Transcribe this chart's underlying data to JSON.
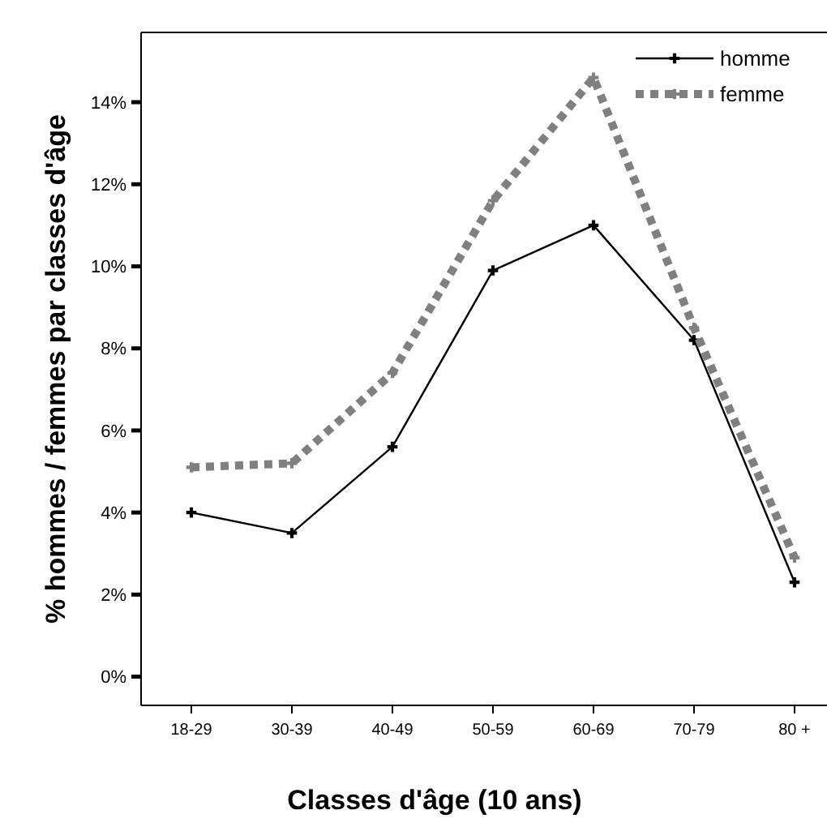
{
  "chart_data": {
    "type": "line",
    "xlabel": "Classes d'âge (10 ans)",
    "ylabel": "% hommes / femmes par classes d'âge",
    "categories": [
      "18-29",
      "30-39",
      "40-49",
      "50-59",
      "60-69",
      "70-79",
      "80 +"
    ],
    "series": [
      {
        "name": "homme",
        "color": "#000000",
        "values": [
          4.0,
          3.5,
          5.6,
          9.9,
          11.0,
          8.2,
          2.3
        ],
        "line_style": "solid"
      },
      {
        "name": "femme",
        "color": "#808080",
        "values": [
          5.1,
          5.2,
          7.4,
          11.6,
          14.6,
          8.5,
          2.9
        ],
        "line_style": "dotted"
      }
    ],
    "ylim": [
      -0.7,
      15.7
    ],
    "yticks": [
      {
        "value": 0,
        "label": "0%"
      },
      {
        "value": 2,
        "label": "2%"
      },
      {
        "value": 4,
        "label": "4%"
      },
      {
        "value": 6,
        "label": "6%"
      },
      {
        "value": 8,
        "label": "8%"
      },
      {
        "value": 10,
        "label": "10%"
      },
      {
        "value": 12,
        "label": "12%"
      },
      {
        "value": 14,
        "label": "14%"
      }
    ],
    "marker": "cross",
    "legend": "top right",
    "grid": false
  }
}
